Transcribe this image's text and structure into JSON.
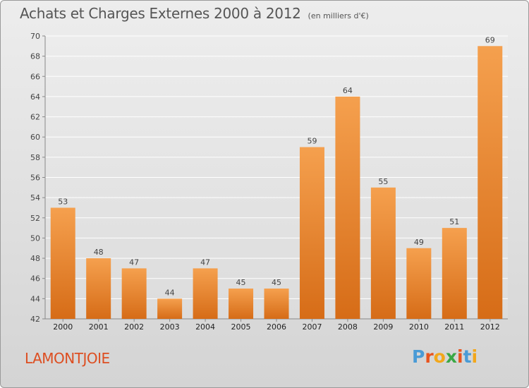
{
  "header": {
    "title": "Achats et Charges Externes 2000 à 2012",
    "unit_note": "(en milliers d'€)"
  },
  "footer": {
    "commune": "LAMONTJOIE",
    "logo_text": "Proxiti",
    "logo_colors": [
      "#4a9bd6",
      "#e8541e",
      "#f2a71b",
      "#3aa845",
      "#e8541e",
      "#4a9bd6",
      "#f2a71b"
    ]
  },
  "colors": {
    "bar_top": "#f5a04e",
    "bar_bottom": "#d66c17",
    "grid": "#ffffff",
    "axis": "#888888"
  },
  "chart_data": {
    "type": "bar",
    "categories": [
      "2000",
      "2001",
      "2002",
      "2003",
      "2004",
      "2005",
      "2006",
      "2007",
      "2008",
      "2009",
      "2010",
      "2011",
      "2012"
    ],
    "values": [
      53,
      48,
      47,
      44,
      47,
      45,
      45,
      59,
      64,
      55,
      49,
      51,
      69
    ],
    "ylim": [
      42,
      70
    ],
    "yticks": [
      42,
      44,
      46,
      48,
      50,
      52,
      54,
      56,
      58,
      60,
      62,
      64,
      66,
      68,
      70
    ],
    "grid": true
  }
}
